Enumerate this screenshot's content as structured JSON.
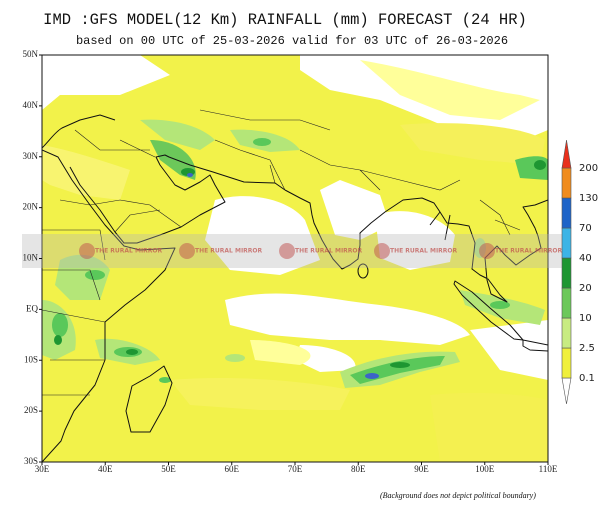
{
  "header": {
    "title": "IMD :GFS MODEL(12 Km) RAINFALL (mm) FORECAST (24 HR)",
    "subtitle": "based on 00 UTC of 25-03-2026 valid for 03 UTC of 26-03-2026"
  },
  "map": {
    "lat_labels": [
      "50N",
      "40N",
      "30N",
      "20N",
      "10N",
      "EQ",
      "10S",
      "20S",
      "30S"
    ],
    "lon_labels": [
      "30E",
      "40E",
      "50E",
      "60E",
      "70E",
      "80E",
      "90E",
      "100E",
      "110E"
    ],
    "watermark": "THE RURAL MIRROR"
  },
  "legend": {
    "levels": [
      0.1,
      2.5,
      10,
      20,
      40,
      70,
      130,
      200
    ],
    "colors": [
      "#ffffff",
      "#f0f03c",
      "#c8ec82",
      "#6cc85a",
      "#1e9632",
      "#3cb4e6",
      "#1e64c8",
      "#f08c1e",
      "#e8301c"
    ]
  },
  "footer": "(Background does not depict political boundary)"
}
